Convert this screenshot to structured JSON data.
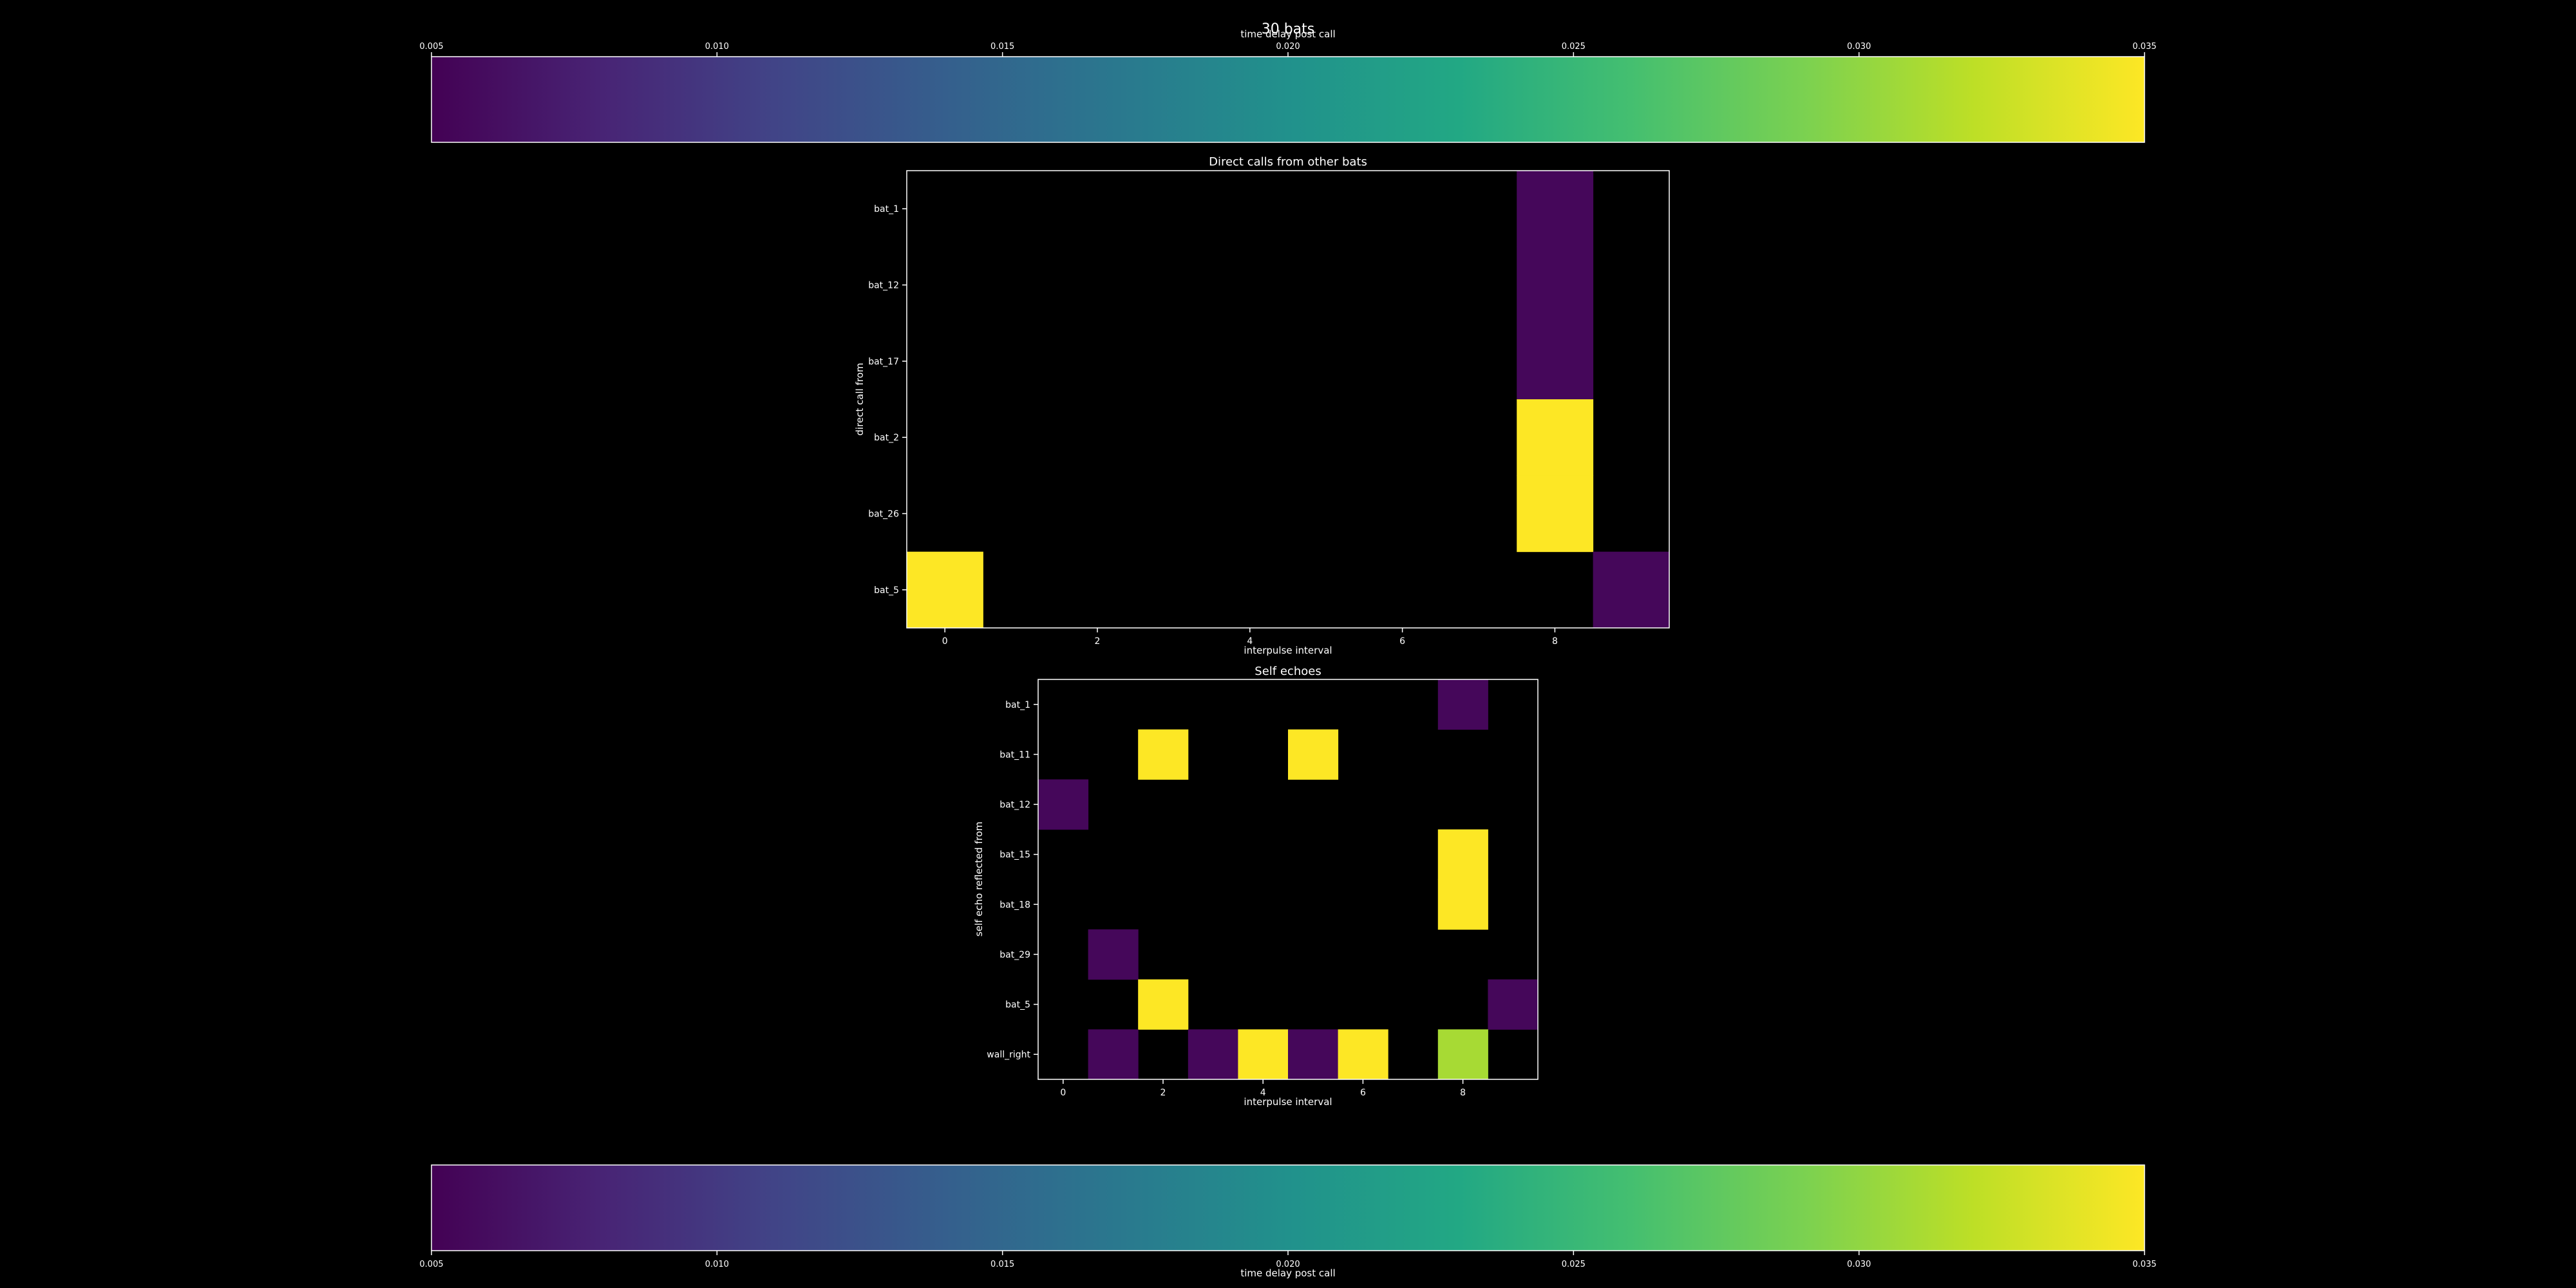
{
  "suptitle": "30 bats",
  "colorbar": {
    "label": "time delay post call",
    "ticks": [
      "0.005",
      "0.010",
      "0.015",
      "0.020",
      "0.025",
      "0.030",
      "0.035"
    ],
    "vmin": 0.005,
    "vmax": 0.035,
    "colormap": "viridis"
  },
  "colors": {
    "background": "#000000",
    "text": "#ffffff",
    "frame": "#ffffff"
  },
  "chart_data": [
    {
      "type": "heatmap",
      "title": "Direct calls from other bats",
      "xlabel": "interpulse interval",
      "ylabel": "direct call from",
      "x_range": [
        0,
        9
      ],
      "x_ticks": [
        "0",
        "2",
        "4",
        "6",
        "8"
      ],
      "y_categories": [
        "bat_1",
        "bat_12",
        "bat_17",
        "bat_2",
        "bat_26",
        "bat_5"
      ],
      "cells": [
        {
          "y": "bat_1",
          "x": 8,
          "value": 0.0055
        },
        {
          "y": "bat_12",
          "x": 8,
          "value": 0.0055
        },
        {
          "y": "bat_17",
          "x": 8,
          "value": 0.0055
        },
        {
          "y": "bat_2",
          "x": 8,
          "value": 0.035
        },
        {
          "y": "bat_26",
          "x": 8,
          "value": 0.035
        },
        {
          "y": "bat_5",
          "x": 0,
          "value": 0.035
        },
        {
          "y": "bat_5",
          "x": 9,
          "value": 0.0055
        }
      ]
    },
    {
      "type": "heatmap",
      "title": "Self echoes",
      "xlabel": "interpulse interval",
      "ylabel": "self echo reflected from",
      "x_range": [
        0,
        9
      ],
      "x_ticks": [
        "0",
        "2",
        "4",
        "6",
        "8"
      ],
      "y_categories": [
        "bat_1",
        "bat_11",
        "bat_12",
        "bat_15",
        "bat_18",
        "bat_29",
        "bat_5",
        "wall_right"
      ],
      "cells": [
        {
          "y": "bat_1",
          "x": 8,
          "value": 0.0055
        },
        {
          "y": "bat_11",
          "x": 2,
          "value": 0.035
        },
        {
          "y": "bat_11",
          "x": 5,
          "value": 0.035
        },
        {
          "y": "bat_12",
          "x": 0,
          "value": 0.0055
        },
        {
          "y": "bat_15",
          "x": 8,
          "value": 0.035
        },
        {
          "y": "bat_18",
          "x": 8,
          "value": 0.035
        },
        {
          "y": "bat_29",
          "x": 1,
          "value": 0.0055
        },
        {
          "y": "bat_5",
          "x": 2,
          "value": 0.035
        },
        {
          "y": "bat_5",
          "x": 9,
          "value": 0.0055
        },
        {
          "y": "wall_right",
          "x": 1,
          "value": 0.0055
        },
        {
          "y": "wall_right",
          "x": 3,
          "value": 0.0055
        },
        {
          "y": "wall_right",
          "x": 4,
          "value": 0.035
        },
        {
          "y": "wall_right",
          "x": 5,
          "value": 0.0055
        },
        {
          "y": "wall_right",
          "x": 6,
          "value": 0.035
        },
        {
          "y": "wall_right",
          "x": 8,
          "value": 0.031
        }
      ]
    }
  ]
}
